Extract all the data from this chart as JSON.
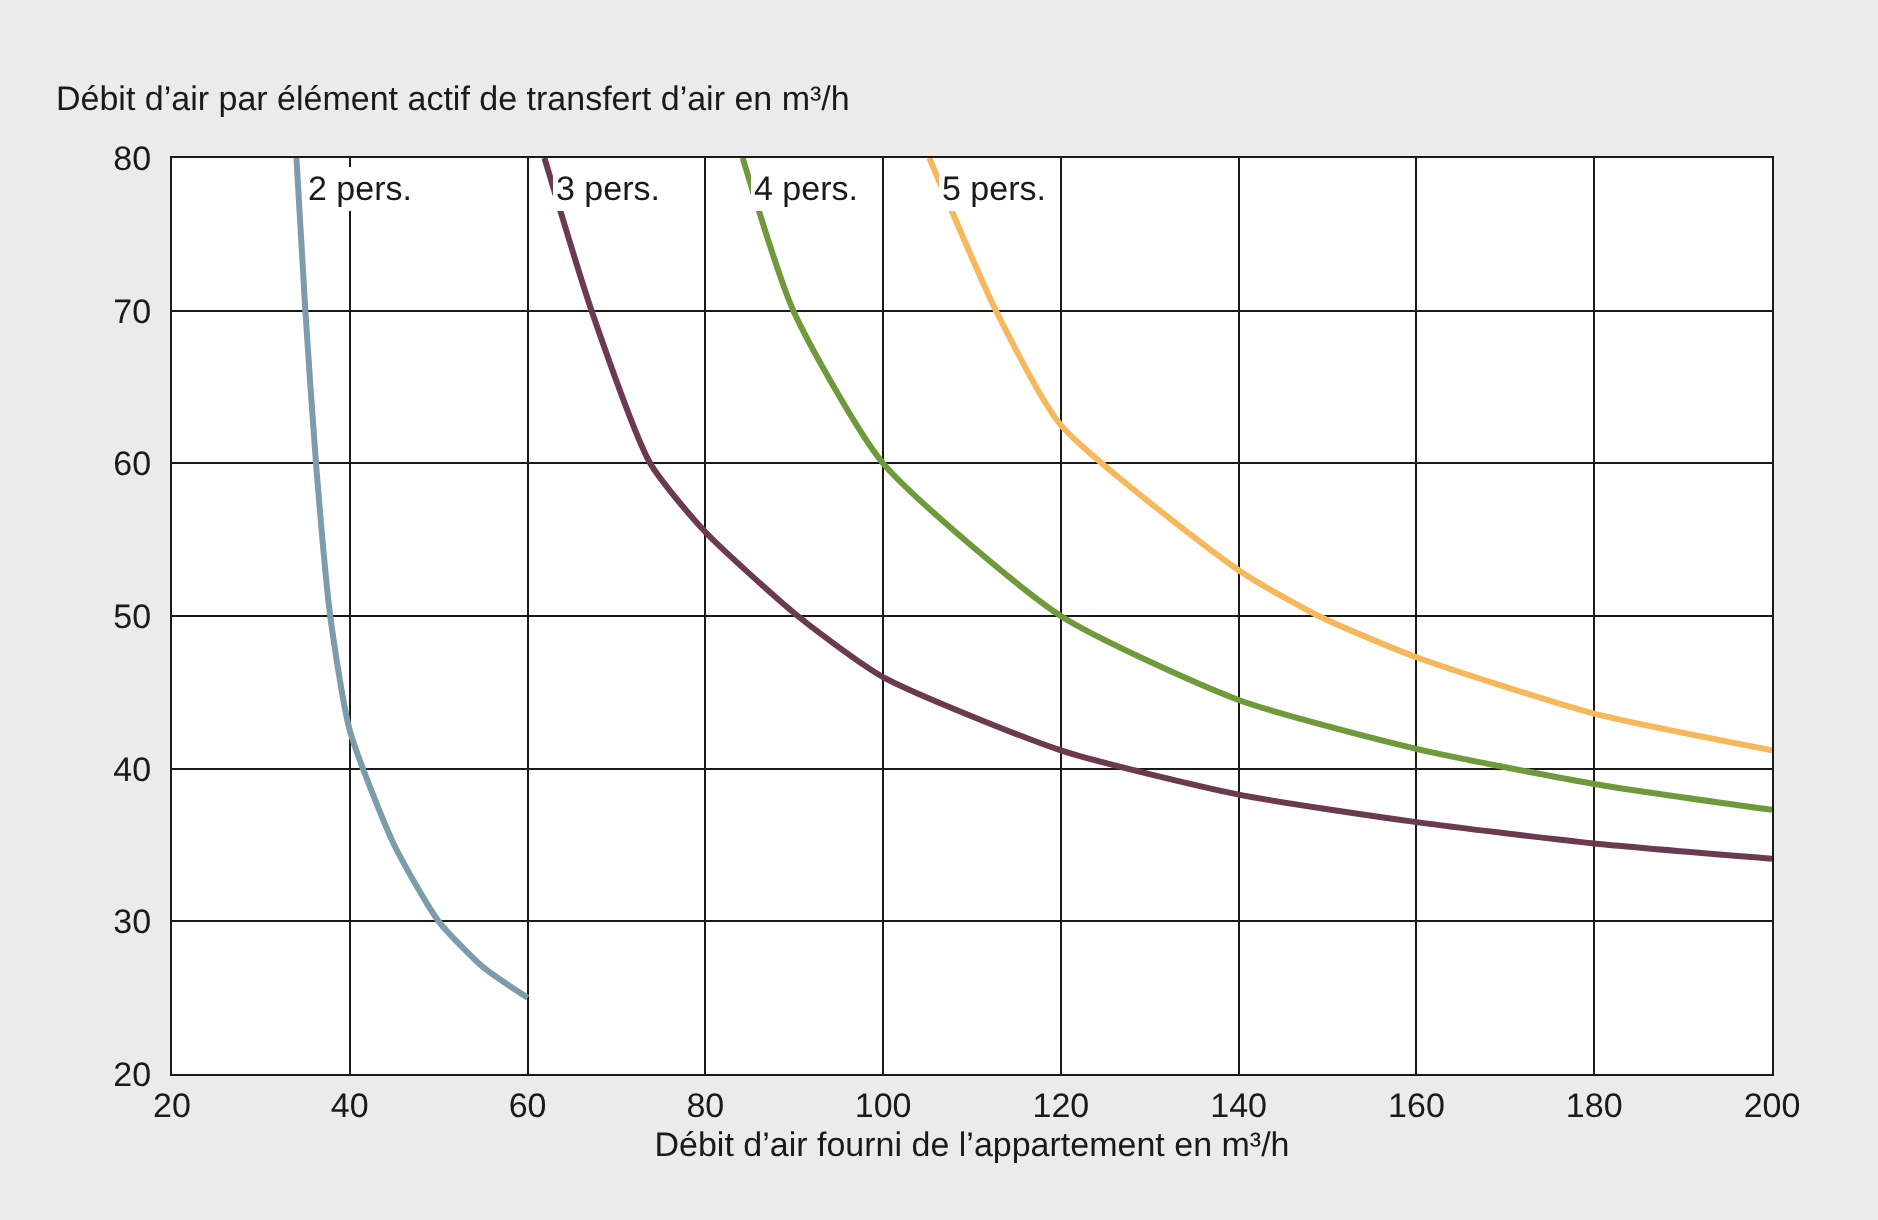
{
  "chart_data": {
    "type": "line",
    "xlabel": "Débit d’air fourni de l’appartement en m³/h",
    "ylabel": "Débit d’air par élément actif de transfert d’air en m³/h",
    "xlim": [
      20,
      200
    ],
    "xticks": [
      20,
      40,
      60,
      80,
      100,
      120,
      140,
      160,
      180,
      200
    ],
    "ylim": [
      20,
      80
    ],
    "yticks": [
      20,
      30,
      40,
      50,
      60,
      70,
      80
    ],
    "grid": true,
    "legend": false,
    "marker": "none",
    "line_style": "solid",
    "series": [
      {
        "name": "2 pers.",
        "color": "#7c9cab",
        "x": [
          34,
          35,
          36.2,
          37.8,
          40,
          45,
          50,
          55,
          60
        ],
        "values": [
          80,
          70,
          60,
          50,
          42.5,
          35,
          30,
          27,
          25
        ]
      },
      {
        "name": "3 pers.",
        "color": "#6b3a50",
        "x": [
          61.9,
          67.2,
          73.8,
          80,
          90.4,
          100,
          120,
          140,
          160,
          180,
          200
        ],
        "values": [
          80,
          70,
          60,
          55.5,
          50,
          46,
          41.2,
          38.3,
          36.5,
          35.1,
          34.1
        ]
      },
      {
        "name": "4 pers.",
        "color": "#6e9a3c",
        "x": [
          84.2,
          89.9,
          100,
          120,
          140,
          160,
          180,
          200
        ],
        "values": [
          80,
          70,
          60,
          50,
          44.5,
          41.3,
          39,
          37.3
        ]
      },
      {
        "name": "5 pers.",
        "color": "#f7b85c",
        "x": [
          105.2,
          112.7,
          120,
          140,
          149,
          160,
          180,
          200
        ],
        "values": [
          80,
          70,
          62.5,
          53,
          50,
          47.3,
          43.6,
          41.2
        ]
      }
    ]
  }
}
